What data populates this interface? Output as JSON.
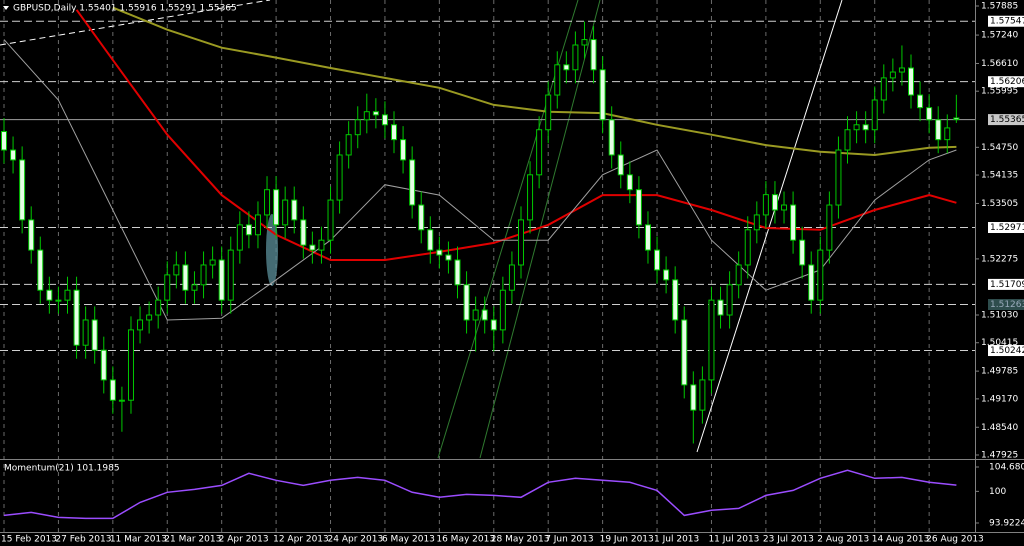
{
  "chart_data": [
    {
      "type": "candlestick",
      "title": "GBPUSD,Daily 1.55401 1.55916 1.55291 1.55365",
      "categories": [
        "15 Feb 2013",
        null,
        null,
        null,
        null,
        null,
        "27 Feb 2013",
        null,
        null,
        null,
        null,
        null,
        "11 Mar 2013",
        null,
        null,
        null,
        null,
        null,
        "21 Mar 2013",
        null,
        null,
        null,
        null,
        null,
        "2 Apr 2013",
        null,
        null,
        null,
        null,
        null,
        "12 Apr 2013",
        null,
        null,
        null,
        null,
        null,
        "24 Apr 2013",
        null,
        null,
        null,
        null,
        null,
        "6 May 2013",
        null,
        null,
        null,
        null,
        null,
        "16 May 2013",
        null,
        null,
        null,
        null,
        null,
        "28 May 2013",
        null,
        null,
        null,
        null,
        null,
        "7 Jun 2013",
        null,
        null,
        null,
        null,
        null,
        "19 Jun 2013",
        null,
        null,
        null,
        null,
        null,
        "1 Jul 2013",
        null,
        null,
        null,
        null,
        null,
        "11 Jul 2013",
        null,
        null,
        null,
        null,
        null,
        "23 Jul 2013",
        null,
        null,
        null,
        null,
        null,
        "2 Aug 2013",
        null,
        null,
        null,
        null,
        null,
        "14 Aug 2013",
        null,
        null,
        null,
        null,
        null,
        "26 Aug 2013",
        null,
        null,
        null
      ],
      "open": [
        1.551,
        1.5469,
        1.5447,
        1.5314,
        1.5247,
        1.5158,
        1.5136,
        1.5136,
        1.5158,
        1.5036,
        1.5092,
        1.5025,
        1.4959,
        1.4914,
        1.4914,
        1.507,
        1.5092,
        1.5103,
        1.5136,
        1.5192,
        1.5214,
        1.5158,
        1.517,
        1.5214,
        1.5225,
        1.5136,
        1.5247,
        1.5303,
        1.5281,
        1.5325,
        1.5381,
        1.5303,
        1.5358,
        1.5314,
        1.5258,
        1.5247,
        1.5269,
        1.5358,
        1.5458,
        1.5503,
        1.5536,
        1.5554,
        1.5547,
        1.5525,
        1.5492,
        1.5447,
        1.5347,
        1.5292,
        1.5247,
        1.5236,
        1.5225,
        1.517,
        1.5092,
        1.5114,
        1.5092,
        1.507,
        1.5158,
        1.5214,
        1.5314,
        1.5414,
        1.5514,
        1.5591,
        1.5658,
        1.5647,
        1.5702,
        1.5714,
        1.5647,
        1.5536,
        1.5458,
        1.5414,
        1.5381,
        1.5303,
        1.5247,
        1.5203,
        1.5181,
        1.5092,
        1.4948,
        1.4892,
        1.4959,
        1.5136,
        1.5103,
        1.517,
        1.5214,
        1.5292,
        1.5325,
        1.537,
        1.5336,
        1.5347,
        1.5269,
        1.5214,
        1.5136,
        1.5247,
        1.5347,
        1.5469,
        1.5514,
        1.5525,
        1.5514,
        1.558,
        1.5629,
        1.5642,
        1.5651,
        1.5591,
        1.5563,
        1.5536,
        1.5492,
        1.55401
      ],
      "high": [
        1.554,
        1.5499,
        1.5477,
        1.5344,
        1.5277,
        1.5188,
        1.5166,
        1.5188,
        1.5188,
        1.5122,
        1.5122,
        1.5055,
        1.4989,
        1.4944,
        1.51,
        1.5122,
        1.5133,
        1.5166,
        1.5222,
        1.5244,
        1.5244,
        1.52,
        1.5244,
        1.5255,
        1.5255,
        1.5277,
        1.5333,
        1.5333,
        1.5355,
        1.5411,
        1.5411,
        1.5388,
        1.5388,
        1.5344,
        1.5288,
        1.5299,
        1.5388,
        1.5488,
        1.5533,
        1.5566,
        1.5594,
        1.5584,
        1.5577,
        1.5555,
        1.5522,
        1.5477,
        1.5377,
        1.5322,
        1.5277,
        1.5266,
        1.5255,
        1.52,
        1.5144,
        1.5144,
        1.5122,
        1.5188,
        1.5244,
        1.5344,
        1.5444,
        1.5544,
        1.5621,
        1.5688,
        1.5688,
        1.5732,
        1.5754,
        1.5744,
        1.5677,
        1.5566,
        1.5488,
        1.5444,
        1.5411,
        1.5333,
        1.5277,
        1.5233,
        1.5211,
        1.5122,
        1.4978,
        1.4989,
        1.5166,
        1.5166,
        1.52,
        1.5244,
        1.5322,
        1.5355,
        1.54,
        1.54,
        1.5377,
        1.5377,
        1.5299,
        1.5244,
        1.5277,
        1.5377,
        1.5499,
        1.5544,
        1.5555,
        1.5555,
        1.561,
        1.5659,
        1.5672,
        1.5701,
        1.5681,
        1.5621,
        1.5593,
        1.5566,
        1.5548,
        1.55916
      ],
      "low": [
        1.5439,
        1.5417,
        1.5284,
        1.5217,
        1.5128,
        1.5106,
        1.5106,
        1.5106,
        1.5006,
        1.5006,
        1.4995,
        1.4929,
        1.4884,
        1.4844,
        1.4884,
        1.504,
        1.5062,
        1.5073,
        1.5106,
        1.5162,
        1.5128,
        1.5128,
        1.514,
        1.5184,
        1.5106,
        1.5106,
        1.5217,
        1.5251,
        1.5251,
        1.5295,
        1.5273,
        1.5273,
        1.5284,
        1.5228,
        1.5217,
        1.5217,
        1.5239,
        1.5328,
        1.5428,
        1.5473,
        1.5506,
        1.5517,
        1.5495,
        1.5462,
        1.5417,
        1.5317,
        1.5262,
        1.5217,
        1.5206,
        1.5195,
        1.514,
        1.5062,
        1.5022,
        1.5062,
        1.5022,
        1.504,
        1.5128,
        1.5184,
        1.5284,
        1.5384,
        1.5484,
        1.5561,
        1.5617,
        1.5617,
        1.5672,
        1.5617,
        1.5506,
        1.5428,
        1.5384,
        1.5351,
        1.5273,
        1.5217,
        1.5173,
        1.5151,
        1.5062,
        1.4918,
        1.4818,
        1.4862,
        1.4929,
        1.5073,
        1.5073,
        1.514,
        1.5184,
        1.5262,
        1.5295,
        1.5306,
        1.5306,
        1.5239,
        1.5184,
        1.5106,
        1.5106,
        1.5217,
        1.5317,
        1.5439,
        1.5484,
        1.5484,
        1.5484,
        1.555,
        1.5599,
        1.5612,
        1.5561,
        1.5533,
        1.5506,
        1.5462,
        1.5462,
        1.55291
      ],
      "close": [
        1.5469,
        1.5447,
        1.5314,
        1.5247,
        1.5158,
        1.5136,
        1.5136,
        1.5158,
        1.5036,
        1.5092,
        1.5025,
        1.4959,
        1.4914,
        1.4914,
        1.507,
        1.5092,
        1.5103,
        1.5136,
        1.5192,
        1.5214,
        1.5158,
        1.517,
        1.5214,
        1.5225,
        1.5136,
        1.5247,
        1.5303,
        1.5281,
        1.5325,
        1.5381,
        1.5303,
        1.5358,
        1.5314,
        1.5258,
        1.5247,
        1.5269,
        1.5358,
        1.5458,
        1.5503,
        1.5536,
        1.5554,
        1.5547,
        1.5525,
        1.5492,
        1.5447,
        1.5347,
        1.5292,
        1.5247,
        1.5236,
        1.5225,
        1.517,
        1.5092,
        1.5114,
        1.5092,
        1.507,
        1.5158,
        1.5214,
        1.5314,
        1.5414,
        1.5514,
        1.5591,
        1.5658,
        1.5647,
        1.5702,
        1.5714,
        1.5647,
        1.5536,
        1.5458,
        1.5414,
        1.5381,
        1.5303,
        1.5247,
        1.5203,
        1.5181,
        1.5092,
        1.4948,
        1.4892,
        1.4959,
        1.5136,
        1.5103,
        1.517,
        1.5214,
        1.5292,
        1.5325,
        1.537,
        1.5336,
        1.5347,
        1.5269,
        1.5214,
        1.5136,
        1.5247,
        1.5347,
        1.5469,
        1.5514,
        1.5525,
        1.5514,
        1.558,
        1.5629,
        1.5642,
        1.5651,
        1.5591,
        1.5563,
        1.5536,
        1.5492,
        1.5518,
        1.55365
      ],
      "up_color": "#000000",
      "down_color": "#e6ffe6",
      "wick_color": "#00c800",
      "ylim": [
        1.47858,
        1.58018
      ],
      "yticks": [
        1.57885,
        {
          "value": 1.5724,
          "label": "1.57240"
        },
        {
          "value": 1.5661,
          "label": "1.56610"
        },
        1.55995,
        {
          "value": 1.5475,
          "label": "1.54750"
        },
        1.54135,
        1.53505,
        1.52275,
        {
          "value": 1.5103,
          "label": "1.51030"
        },
        1.50415,
        1.49785,
        {
          "value": 1.4917,
          "label": "1.49170"
        },
        {
          "value": 1.4854,
          "label": "1.48540"
        },
        1.47925
      ],
      "levels": [
        1.57547,
        1.56206,
        1.52971,
        1.51709,
        1.51263,
        1.50242
      ],
      "price_line": 1.55365,
      "grid": true,
      "series": [
        {
          "color": "#9a9a22",
          "x": [
            12,
            18,
            24,
            30,
            36,
            42,
            48,
            54,
            60,
            66,
            72,
            78,
            84,
            90,
            96,
            102,
            105
          ],
          "values": [
            1.5785,
            1.5736,
            1.5696,
            1.5674,
            1.5651,
            1.5629,
            1.5607,
            1.5569,
            1.5554,
            1.5551,
            1.5525,
            1.5503,
            1.548,
            1.5465,
            1.5458,
            1.5474,
            1.5476
          ]
        },
        {
          "color": "#e00000",
          "x": [
            8,
            12,
            18,
            24,
            30,
            36,
            42,
            48,
            54,
            60,
            66,
            72,
            78,
            84,
            90,
            96,
            102,
            105
          ],
          "values": [
            1.578,
            1.5669,
            1.5503,
            1.5369,
            1.5281,
            1.5225,
            1.5225,
            1.5243,
            1.5263,
            1.5303,
            1.5369,
            1.5369,
            1.5336,
            1.5296,
            1.5292,
            1.5336,
            1.5369,
            1.5352
          ]
        },
        {
          "color": "#a0a0a0",
          "x": [
            0,
            6,
            12,
            18,
            24,
            30,
            36,
            42,
            48,
            54,
            60,
            66,
            72,
            78,
            84,
            90,
            96,
            102,
            105
          ],
          "values": [
            1.5714,
            1.558,
            1.5336,
            1.5092,
            1.5096,
            1.5181,
            1.5269,
            1.5392,
            1.5369,
            1.5269,
            1.5269,
            1.5414,
            1.5469,
            1.5269,
            1.5158,
            1.5203,
            1.5358,
            1.5447,
            1.5469
          ]
        }
      ]
    },
    {
      "type": "line",
      "title": "Momentum(21) 101.1985",
      "x": [
        0,
        3,
        6,
        9,
        12,
        15,
        18,
        21,
        24,
        27,
        30,
        33,
        36,
        39,
        42,
        45,
        48,
        51,
        54,
        57,
        60,
        63,
        66,
        69,
        72,
        75,
        78,
        81,
        84,
        87,
        90,
        93,
        96,
        99,
        102,
        105
      ],
      "values": [
        95.38,
        95.96,
        95.0,
        94.81,
        94.81,
        97.88,
        99.81,
        100.38,
        101.15,
        103.46,
        102.12,
        101.15,
        102.12,
        102.69,
        102.12,
        99.81,
        98.85,
        99.42,
        99.23,
        98.85,
        101.73,
        102.5,
        102.12,
        101.73,
        100.19,
        95.38,
        96.35,
        96.73,
        99.23,
        100.19,
        102.5,
        104.04,
        102.5,
        102.69,
        101.73,
        101.2
      ],
      "color": "#9b4dff",
      "ylim": [
        92.19,
        105.64
      ],
      "yticks": [
        104.6803,
        100,
        93.9224
      ]
    }
  ]
}
